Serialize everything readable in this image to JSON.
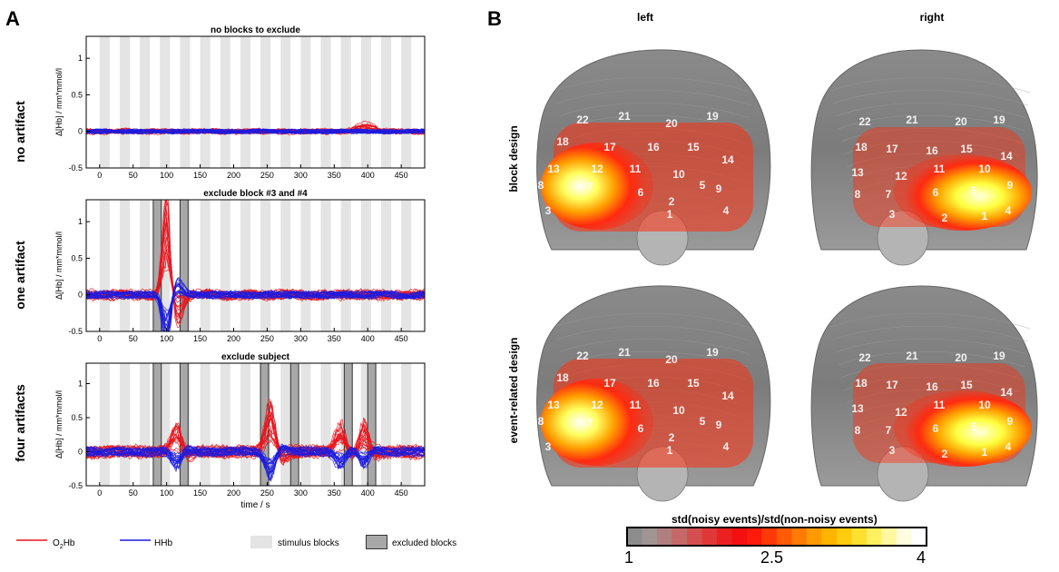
{
  "panel_a": {
    "letter": "A",
    "xlabel": "time / s",
    "plots": [
      {
        "row_label": "no artifact",
        "title": "no blocks to exclude",
        "ylabel": "Δ[Hb] / mm*mmol/l",
        "excluded_blocks": [],
        "artifact_times": []
      },
      {
        "row_label": "one artifact",
        "title": "exclude block #3 and #4",
        "ylabel": "Δ[Hb] / mm*mmol/l",
        "excluded_blocks": [
          3,
          4
        ],
        "artifact_times": [
          100
        ]
      },
      {
        "row_label": "four artifacts",
        "title": "exclude subject",
        "ylabel": "Δ[Hb] / mm*mmol/l",
        "excluded_blocks": [
          3,
          4,
          7,
          8,
          11,
          12
        ],
        "artifact_times": [
          115,
          255,
          360,
          395
        ]
      }
    ],
    "legend": {
      "o2hb_main": "O",
      "o2hb_sub": "2",
      "o2hb_rest": "Hb",
      "hhb": "HHb",
      "stimulus": "stimulus blocks",
      "excluded": "excluded blocks"
    },
    "colors": {
      "o2hb": "#e8141c",
      "hhb": "#1c1ce0",
      "stimulus": "#e4e4e4",
      "excluded": "#a8a8a8"
    }
  },
  "chart_data": [
    {
      "type": "line",
      "title": "no blocks to exclude",
      "xlabel": "",
      "ylabel": "Δ[Hb] / mm*mmol/l",
      "xlim": [
        -20,
        485
      ],
      "ylim": [
        -0.5,
        1.3
      ],
      "x_ticks": [
        0,
        50,
        100,
        150,
        200,
        250,
        300,
        350,
        400,
        450
      ],
      "y_ticks": [
        -0.5,
        0,
        0.5,
        1
      ],
      "stimulus_blocks": [
        [
          0,
          15
        ],
        [
          30,
          45
        ],
        [
          60,
          75
        ],
        [
          90,
          105
        ],
        [
          120,
          135
        ],
        [
          150,
          165
        ],
        [
          180,
          195
        ],
        [
          210,
          225
        ],
        [
          240,
          255
        ],
        [
          270,
          285
        ],
        [
          300,
          315
        ],
        [
          330,
          345
        ],
        [
          360,
          375
        ],
        [
          390,
          405
        ],
        [
          420,
          435
        ],
        [
          450,
          465
        ]
      ],
      "excluded_blocks": [],
      "series": [
        {
          "name": "O2Hb",
          "color": "#e8141c"
        },
        {
          "name": "HHb",
          "color": "#1c1ce0"
        }
      ]
    },
    {
      "type": "line",
      "title": "exclude block #3 and #4",
      "xlabel": "",
      "ylabel": "Δ[Hb] / mm*mmol/l",
      "xlim": [
        -20,
        485
      ],
      "ylim": [
        -0.5,
        1.3
      ],
      "x_ticks": [
        0,
        50,
        100,
        150,
        200,
        250,
        300,
        350,
        400,
        450
      ],
      "y_ticks": [
        -0.5,
        0,
        0.5,
        1
      ],
      "excluded_blocks": [
        [
          80,
          92
        ],
        [
          120,
          132
        ]
      ],
      "peak": {
        "x": 103,
        "y": 1.25
      },
      "series": [
        {
          "name": "O2Hb",
          "color": "#e8141c"
        },
        {
          "name": "HHb",
          "color": "#1c1ce0"
        }
      ]
    },
    {
      "type": "line",
      "title": "exclude subject",
      "xlabel": "time / s",
      "ylabel": "Δ[Hb] / mm*mmol/l",
      "xlim": [
        -20,
        485
      ],
      "ylim": [
        -0.5,
        1.3
      ],
      "x_ticks": [
        0,
        50,
        100,
        150,
        200,
        250,
        300,
        350,
        400,
        450
      ],
      "y_ticks": [
        -0.5,
        0,
        0.5,
        1
      ],
      "excluded_blocks": [
        [
          80,
          92
        ],
        [
          120,
          132
        ],
        [
          240,
          252
        ],
        [
          285,
          297
        ],
        [
          365,
          377
        ],
        [
          400,
          412
        ]
      ],
      "series": [
        {
          "name": "O2Hb",
          "color": "#e8141c"
        },
        {
          "name": "HHb",
          "color": "#1c1ce0"
        }
      ]
    },
    {
      "type": "heatmap",
      "title": "std(noisy events)/std(non-noisy events)",
      "colorbar_ticks": [
        "1",
        "2.5",
        "4"
      ],
      "range": [
        1,
        4
      ],
      "views": [
        "left",
        "right"
      ],
      "designs": [
        "block design",
        "event-related design"
      ]
    }
  ],
  "panel_b": {
    "letter": "B",
    "col_left": "left",
    "col_right": "right",
    "row_top": "block design",
    "row_bottom": "event-related design",
    "colorbar_title": "std(noisy events)/std(non-noisy events)",
    "colorbar_ticks": [
      "1",
      "2.5",
      "4"
    ],
    "channels_left": [
      "22",
      "21",
      "20",
      "19",
      "18",
      "17",
      "16",
      "15",
      "14",
      "13",
      "12",
      "11",
      "10",
      "9",
      "8",
      "7",
      "6",
      "5",
      "4",
      "3",
      "2",
      "1"
    ],
    "channels_right": [
      "22",
      "21",
      "20",
      "19",
      "18",
      "17",
      "16",
      "15",
      "14",
      "13",
      "12",
      "11",
      "10",
      "9",
      "8",
      "7",
      "6",
      "5",
      "4",
      "3",
      "2",
      "1"
    ]
  }
}
